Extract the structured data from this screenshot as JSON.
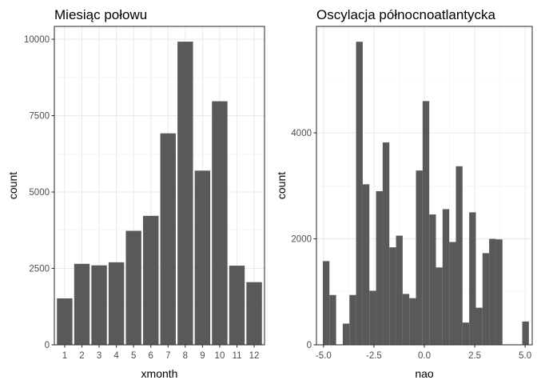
{
  "chart_data": [
    {
      "type": "bar",
      "title": "Miesiąc połowu",
      "xlabel": "xmonth",
      "ylabel": "count",
      "categories": [
        "1",
        "2",
        "3",
        "4",
        "5",
        "6",
        "7",
        "8",
        "9",
        "10",
        "11",
        "12"
      ],
      "values": [
        1520,
        2650,
        2600,
        2700,
        3730,
        4220,
        6920,
        9920,
        5700,
        7970,
        2590,
        2050
      ],
      "ylim": [
        0,
        10420
      ],
      "yticks": [
        0,
        2500,
        5000,
        7500,
        10000
      ],
      "ytick_labels": [
        "0",
        "2500",
        "5000",
        "7500",
        "10000"
      ],
      "fill_color": "#595959",
      "grid": true
    },
    {
      "type": "bar",
      "title": "Oscylacja północnoatlantycka",
      "xlabel": "nao",
      "ylabel": "count",
      "bin_width": 0.33,
      "x": [
        -4.87,
        -4.54,
        -3.88,
        -3.55,
        -3.22,
        -2.89,
        -2.56,
        -2.23,
        -1.9,
        -1.57,
        -1.24,
        -0.91,
        -0.58,
        -0.25,
        0.08,
        0.41,
        0.74,
        1.07,
        1.4,
        1.73,
        2.06,
        2.39,
        2.72,
        3.05,
        3.38,
        3.71,
        5.02
      ],
      "values": [
        1580,
        940,
        400,
        940,
        5720,
        3030,
        1020,
        2900,
        3820,
        1840,
        2060,
        960,
        880,
        3290,
        4600,
        2460,
        1460,
        2560,
        1940,
        3370,
        420,
        2500,
        700,
        1730,
        2000,
        1990,
        440
      ],
      "xlim": [
        -5.35,
        5.35
      ],
      "ylim": [
        0,
        6010
      ],
      "xticks": [
        -5,
        -2.5,
        0,
        2.5,
        5
      ],
      "xtick_labels": [
        "-5.0",
        "-2.5",
        "0.0",
        "2.5",
        "5.0"
      ],
      "yticks": [
        0,
        2000,
        4000
      ],
      "ytick_labels": [
        "0",
        "2000",
        "4000"
      ],
      "fill_color": "#595959",
      "grid": true
    }
  ]
}
